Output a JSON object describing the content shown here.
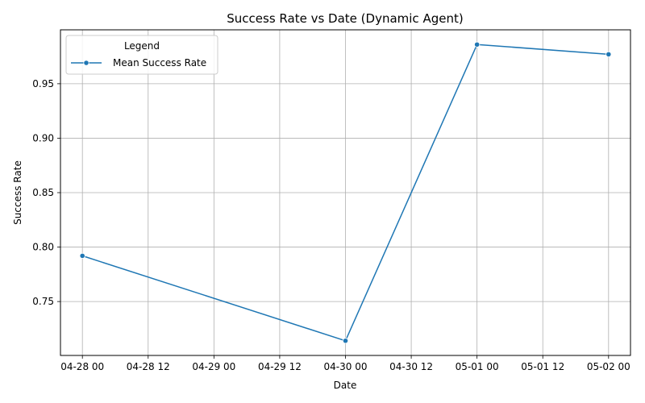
{
  "chart_data": {
    "type": "line",
    "title": "Success Rate vs Date (Dynamic Agent)",
    "xlabel": "Date",
    "ylabel": "Success Rate",
    "x_type": "datetime",
    "xlim": [
      "2025-04-27T20:00:00",
      "2025-05-02T04:00:00"
    ],
    "ylim": [
      0.7005,
      0.9995
    ],
    "x_ticks": [
      {
        "value": "2025-04-28T00:00:00",
        "label": "04-28 00"
      },
      {
        "value": "2025-04-28T12:00:00",
        "label": "04-28 12"
      },
      {
        "value": "2025-04-29T00:00:00",
        "label": "04-29 00"
      },
      {
        "value": "2025-04-29T12:00:00",
        "label": "04-29 12"
      },
      {
        "value": "2025-04-30T00:00:00",
        "label": "04-30 00"
      },
      {
        "value": "2025-04-30T12:00:00",
        "label": "04-30 12"
      },
      {
        "value": "2025-05-01T00:00:00",
        "label": "05-01 00"
      },
      {
        "value": "2025-05-01T12:00:00",
        "label": "05-01 12"
      },
      {
        "value": "2025-05-02T00:00:00",
        "label": "05-02 00"
      }
    ],
    "y_ticks": [
      {
        "value": 0.75,
        "label": "0.75"
      },
      {
        "value": 0.8,
        "label": "0.80"
      },
      {
        "value": 0.85,
        "label": "0.85"
      },
      {
        "value": 0.9,
        "label": "0.90"
      },
      {
        "value": 0.95,
        "label": "0.95"
      }
    ],
    "grid": true,
    "legend": {
      "title": "Legend",
      "position": "top-left"
    },
    "series": [
      {
        "name": "Mean Success Rate",
        "color": "#1f77b4",
        "marker": "circle",
        "points": [
          {
            "x": "2025-04-28T00:00:00",
            "y": 0.792
          },
          {
            "x": "2025-04-30T00:00:00",
            "y": 0.714
          },
          {
            "x": "2025-05-01T00:00:00",
            "y": 0.986
          },
          {
            "x": "2025-05-02T00:00:00",
            "y": 0.977
          }
        ]
      }
    ]
  }
}
